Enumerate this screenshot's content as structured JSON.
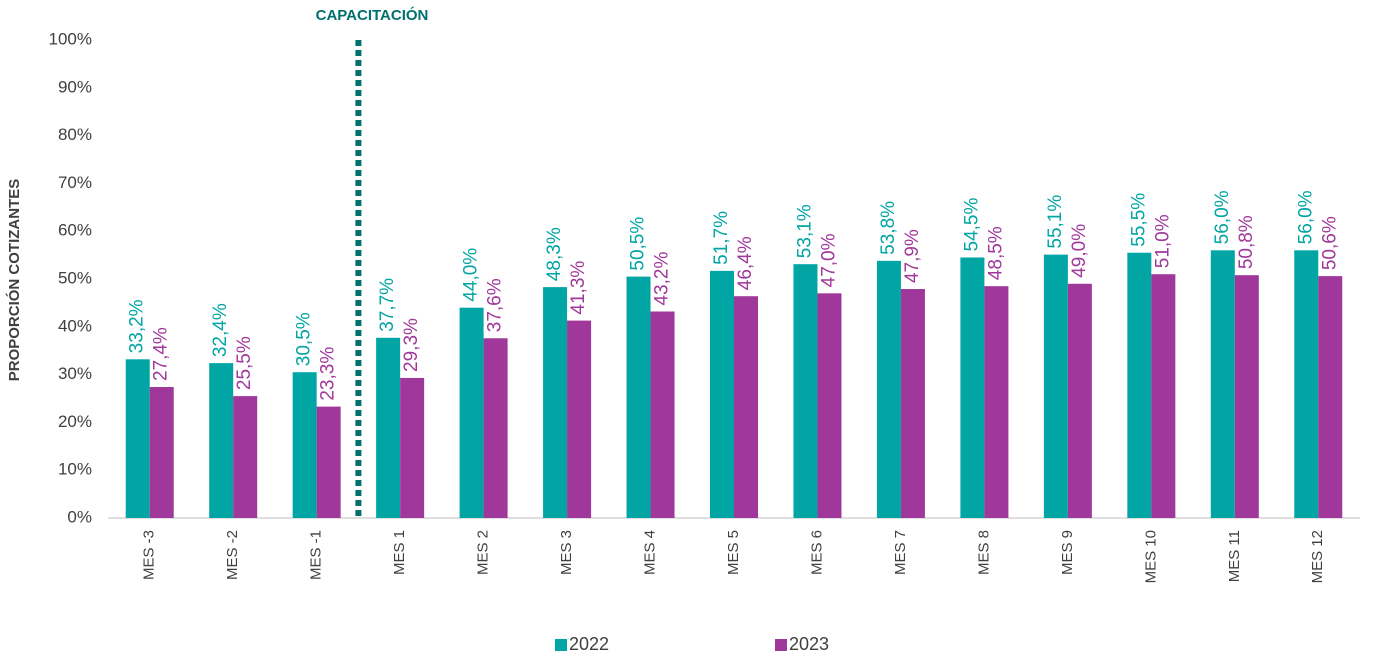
{
  "chart_data": {
    "type": "bar",
    "y_label": "PROPORCIÓN COTIZANTES",
    "annotation": "CAPACITACIÓN",
    "categories": [
      "MES -3",
      "MES -2",
      "MES -1",
      "MES 1",
      "MES 2",
      "MES 3",
      "MES 4",
      "MES 5",
      "MES 6",
      "MES 7",
      "MES 8",
      "MES 9",
      "MES 10",
      "MES 11",
      "MES 12"
    ],
    "series": [
      {
        "name": "2022",
        "color": "#00a5a4",
        "values": [
          33.2,
          32.4,
          30.5,
          37.7,
          44.0,
          48.3,
          50.5,
          51.7,
          53.1,
          53.8,
          54.5,
          55.1,
          55.5,
          56.0,
          56.0
        ],
        "value_labels": [
          "33,2%",
          "32,4%",
          "30,5%",
          "37,7%",
          "44,0%",
          "48,3%",
          "50,5%",
          "51,7%",
          "53,1%",
          "53,8%",
          "54,5%",
          "55,1%",
          "55,5%",
          "56,0%",
          "56,0%"
        ]
      },
      {
        "name": "2023",
        "color": "#a0379a",
        "values": [
          27.4,
          25.5,
          23.3,
          29.3,
          37.6,
          41.3,
          43.2,
          46.4,
          47.0,
          47.9,
          48.5,
          49.0,
          51.0,
          50.8,
          50.6
        ],
        "value_labels": [
          "27,4%",
          "25,5%",
          "23,3%",
          "29,3%",
          "37,6%",
          "41,3%",
          "43,2%",
          "46,4%",
          "47,0%",
          "47,9%",
          "48,5%",
          "49,0%",
          "51,0%",
          "50,8%",
          "50,6%"
        ]
      }
    ],
    "ylim": [
      0,
      100
    ],
    "yticks": [
      {
        "value": 0,
        "label": "0%"
      },
      {
        "value": 10,
        "label": "10%"
      },
      {
        "value": 20,
        "label": "20%"
      },
      {
        "value": 30,
        "label": "30%"
      },
      {
        "value": 40,
        "label": "40%"
      },
      {
        "value": 50,
        "label": "50%"
      },
      {
        "value": 60,
        "label": "60%"
      },
      {
        "value": 70,
        "label": "70%"
      },
      {
        "value": 80,
        "label": "80%"
      },
      {
        "value": 90,
        "label": "90%"
      },
      {
        "value": 100,
        "label": "100%"
      }
    ],
    "grid": false,
    "legend": "bottom"
  }
}
